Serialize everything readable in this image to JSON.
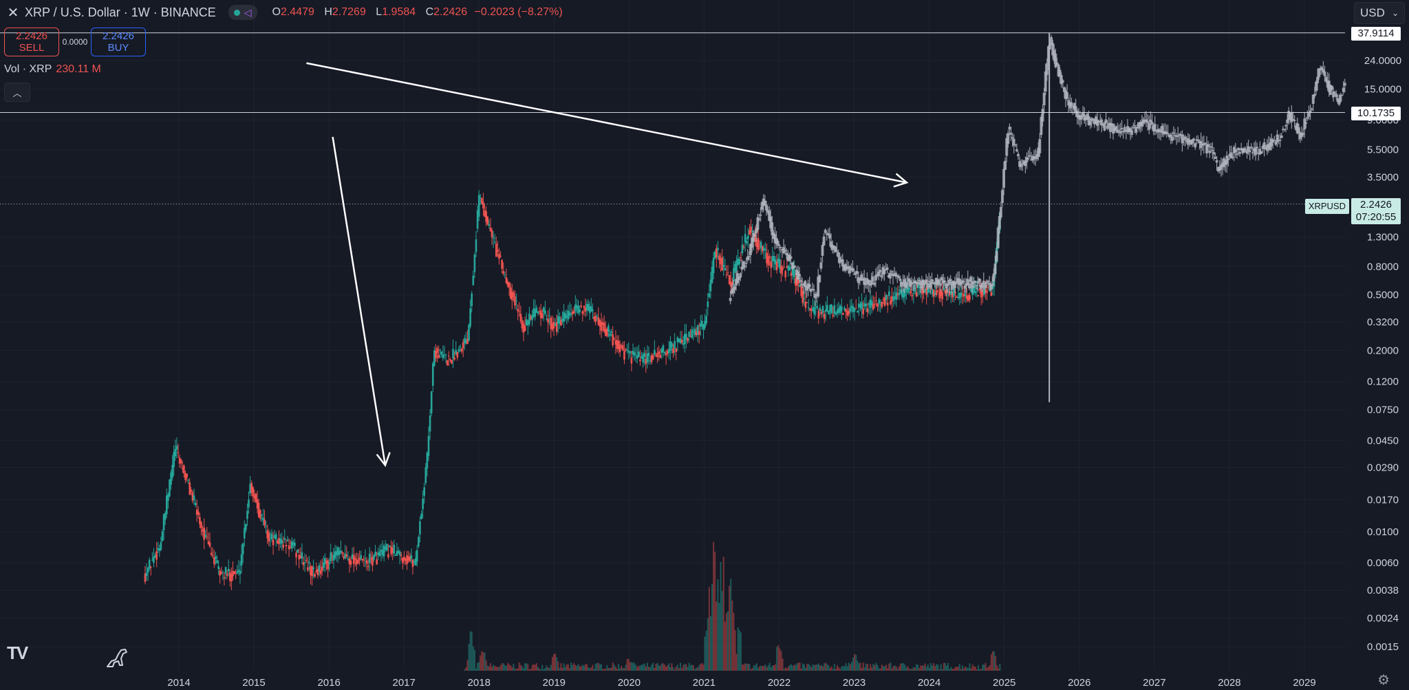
{
  "header": {
    "close_icon": "close-icon",
    "title": "XRP / U.S. Dollar · 1W · BINANCE",
    "ohlc": [
      {
        "k": "O",
        "v": "2.4479"
      },
      {
        "k": "H",
        "v": "2.7269"
      },
      {
        "k": "L",
        "v": "1.9584"
      },
      {
        "k": "C",
        "v": "2.2426"
      }
    ],
    "change": "−0.2023 (−8.27%)"
  },
  "trade": {
    "sell_price": "2.2426",
    "sell_label": "SELL",
    "spread": "0.0000",
    "buy_price": "2.2426",
    "buy_label": "BUY"
  },
  "volume": {
    "label": "Vol · XRP",
    "value": "230.11 M"
  },
  "currency": "USD",
  "lines": {
    "upper": "37.9114",
    "lower": "10.1735"
  },
  "last": {
    "symbol": "XRPUSD",
    "price": "2.2426",
    "countdown": "07:20:55"
  },
  "logo_text": "TV",
  "colors": {
    "up": "#26a69a",
    "down": "#ef5350",
    "bg": "#161a25",
    "projection": "#b2b5be"
  },
  "chart_data": {
    "type": "candlestick",
    "scale": "log",
    "y_ticks": [
      24.0,
      15.0,
      9.0,
      5.5,
      3.5,
      2.2426,
      1.3,
      0.8,
      0.5,
      0.32,
      0.2,
      0.12,
      0.075,
      0.045,
      0.029,
      0.017,
      0.01,
      0.006,
      0.0038,
      0.0024,
      0.0015
    ],
    "y_tick_labels": [
      "24.0000",
      "15.0000",
      "9.0000",
      "5.5000",
      "3.5000",
      "",
      "1.3000",
      "0.8000",
      "0.5000",
      "0.3200",
      "0.2000",
      "0.1200",
      "0.0750",
      "0.0450",
      "0.0290",
      "0.0170",
      "0.0100",
      "0.0060",
      "0.0038",
      "0.0024",
      "0.0015"
    ],
    "x_ticks": [
      "2014",
      "2015",
      "2016",
      "2017",
      "2018",
      "2019",
      "2020",
      "2021",
      "2022",
      "2023",
      "2024",
      "2025",
      "2026",
      "2027",
      "2028",
      "2029"
    ],
    "price_path": [
      [
        2013.55,
        0.005
      ],
      [
        2013.75,
        0.008
      ],
      [
        2013.95,
        0.04
      ],
      [
        2014.15,
        0.02
      ],
      [
        2014.35,
        0.009
      ],
      [
        2014.55,
        0.005
      ],
      [
        2014.8,
        0.005
      ],
      [
        2014.95,
        0.022
      ],
      [
        2015.2,
        0.009
      ],
      [
        2015.5,
        0.008
      ],
      [
        2015.8,
        0.005
      ],
      [
        2016.1,
        0.007
      ],
      [
        2016.5,
        0.006
      ],
      [
        2016.8,
        0.0075
      ],
      [
        2017.15,
        0.006
      ],
      [
        2017.3,
        0.03
      ],
      [
        2017.4,
        0.2
      ],
      [
        2017.6,
        0.17
      ],
      [
        2017.85,
        0.25
      ],
      [
        2018.0,
        2.6
      ],
      [
        2018.3,
        0.8
      ],
      [
        2018.6,
        0.3
      ],
      [
        2018.8,
        0.4
      ],
      [
        2019.0,
        0.3
      ],
      [
        2019.4,
        0.42
      ],
      [
        2019.7,
        0.28
      ],
      [
        2019.95,
        0.19
      ],
      [
        2020.2,
        0.17
      ],
      [
        2020.5,
        0.2
      ],
      [
        2020.8,
        0.25
      ],
      [
        2021.0,
        0.3
      ],
      [
        2021.15,
        1.1
      ],
      [
        2021.35,
        0.6
      ],
      [
        2021.6,
        1.5
      ],
      [
        2021.85,
        0.9
      ],
      [
        2022.2,
        0.7
      ],
      [
        2022.4,
        0.38
      ],
      [
        2022.8,
        0.38
      ],
      [
        2023.0,
        0.38
      ],
      [
        2023.5,
        0.48
      ],
      [
        2023.9,
        0.55
      ],
      [
        2024.4,
        0.5
      ],
      [
        2024.85,
        0.55
      ],
      [
        2024.95,
        2.2426
      ]
    ],
    "projection_path": [
      [
        2021.35,
        0.5
      ],
      [
        2021.6,
        1.0
      ],
      [
        2021.8,
        2.4
      ],
      [
        2021.95,
        1.2
      ],
      [
        2022.15,
        0.9
      ],
      [
        2022.3,
        0.6
      ],
      [
        2022.5,
        0.5
      ],
      [
        2022.6,
        1.5
      ],
      [
        2022.8,
        0.9
      ],
      [
        2023.0,
        0.7
      ],
      [
        2023.2,
        0.6
      ],
      [
        2023.4,
        0.75
      ],
      [
        2023.7,
        0.6
      ],
      [
        2024.0,
        0.62
      ],
      [
        2024.3,
        0.6
      ],
      [
        2024.55,
        0.62
      ],
      [
        2024.85,
        0.6
      ],
      [
        2024.95,
        2.2
      ],
      [
        2025.05,
        8.0
      ],
      [
        2025.2,
        4.5
      ],
      [
        2025.45,
        5.0
      ],
      [
        2025.6,
        35.0
      ],
      [
        2025.8,
        14.0
      ],
      [
        2026.0,
        9.5
      ],
      [
        2026.3,
        8.5
      ],
      [
        2026.6,
        7.5
      ],
      [
        2026.9,
        8.5
      ],
      [
        2027.2,
        7.0
      ],
      [
        2027.5,
        6.5
      ],
      [
        2027.75,
        5.5
      ],
      [
        2027.85,
        4.0
      ],
      [
        2028.1,
        5.5
      ],
      [
        2028.4,
        5.5
      ],
      [
        2028.65,
        6.5
      ],
      [
        2028.8,
        10.0
      ],
      [
        2028.95,
        7.0
      ],
      [
        2029.1,
        12.0
      ],
      [
        2029.2,
        22.0
      ],
      [
        2029.35,
        15.0
      ],
      [
        2029.45,
        12.0
      ],
      [
        2029.55,
        18.0
      ]
    ],
    "projection_wick": {
      "x": 2025.6,
      "low": 0.085,
      "high": 37.9114
    },
    "volume_spikes": [
      [
        2017.9,
        0.35
      ],
      [
        2018.05,
        0.15
      ],
      [
        2019.0,
        0.1
      ],
      [
        2020.0,
        0.08
      ],
      [
        2021.1,
        0.6
      ],
      [
        2021.15,
        1.0
      ],
      [
        2021.25,
        0.9
      ],
      [
        2021.35,
        0.65
      ],
      [
        2022.0,
        0.25
      ],
      [
        2023.0,
        0.15
      ],
      [
        2024.85,
        0.12
      ]
    ],
    "arrows": [
      {
        "from": [
          2016.05,
          6.8
        ],
        "to": [
          2016.75,
          0.03
        ]
      },
      {
        "from": [
          2015.7,
          23.0
        ],
        "to": [
          2023.7,
          3.2
        ]
      }
    ],
    "hlines": [
      37.9114,
      10.1735,
      2.2426
    ]
  }
}
